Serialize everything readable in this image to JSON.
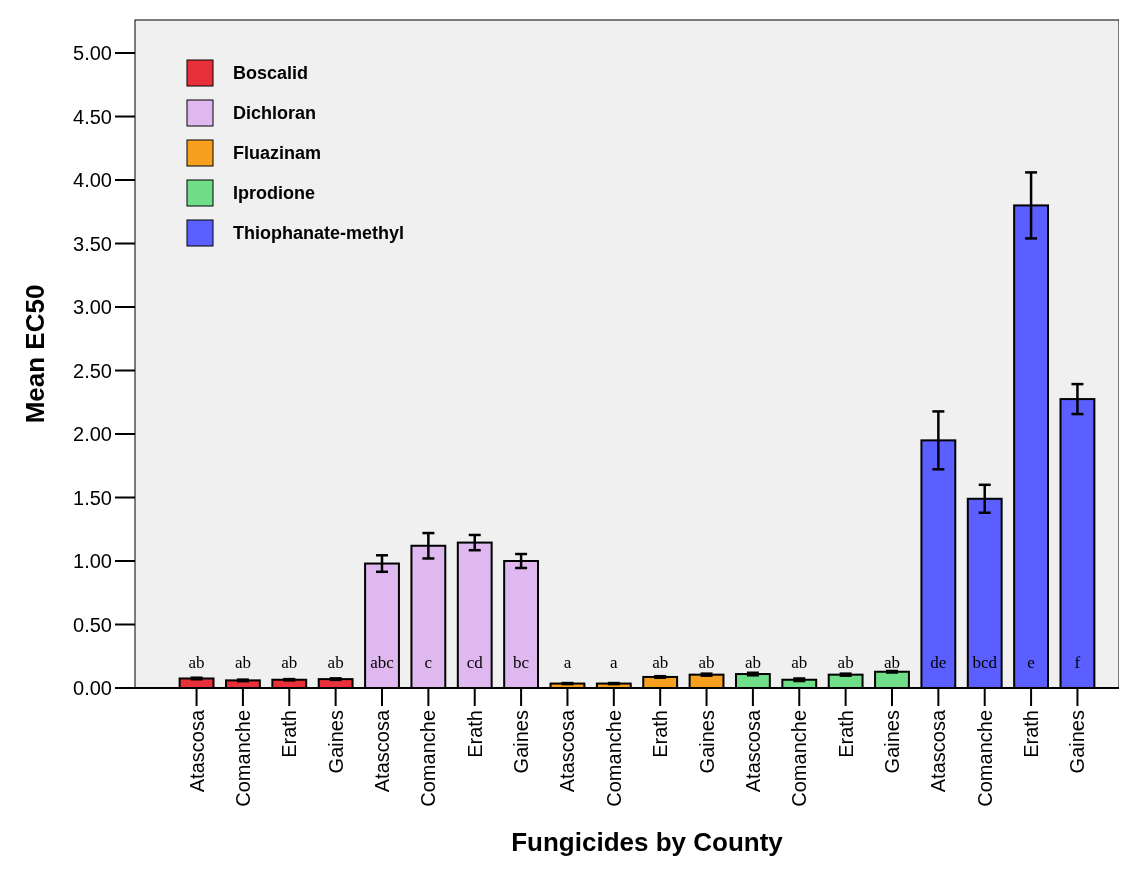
{
  "chart_data": {
    "type": "bar",
    "xlabel": "Fungicides by County",
    "ylabel": "Mean EC50",
    "categories": [
      "Atascosa",
      "Comanche",
      "Erath",
      "Gaines",
      "Atascosa",
      "Comanche",
      "Erath",
      "Gaines",
      "Atascosa",
      "Comanche",
      "Erath",
      "Gaines",
      "Atascosa",
      "Comanche",
      "Erath",
      "Gaines",
      "Atascosa",
      "Comanche",
      "Erath",
      "Gaines"
    ],
    "series": [
      {
        "name": "Boscalid",
        "color": "#e8303a",
        "values": [
          0.075,
          0.06,
          0.065,
          0.07,
          null,
          null,
          null,
          null,
          null,
          null,
          null,
          null,
          null,
          null,
          null,
          null,
          null,
          null,
          null,
          null
        ],
        "errors": [
          0.006,
          0.006,
          0.005,
          0.006,
          null,
          null,
          null,
          null,
          null,
          null,
          null,
          null,
          null,
          null,
          null,
          null,
          null,
          null,
          null,
          null
        ]
      },
      {
        "name": "Dichloran",
        "color": "#e0b8f0",
        "values": [
          null,
          null,
          null,
          null,
          0.98,
          1.12,
          1.145,
          1.0,
          null,
          null,
          null,
          null,
          null,
          null,
          null,
          null,
          null,
          null,
          null,
          null
        ],
        "errors": [
          null,
          null,
          null,
          null,
          0.065,
          0.1,
          0.06,
          0.055,
          null,
          null,
          null,
          null,
          null,
          null,
          null,
          null,
          null,
          null,
          null,
          null
        ]
      },
      {
        "name": "Fluazinam",
        "color": "#f7a020",
        "values": [
          null,
          null,
          null,
          null,
          null,
          null,
          null,
          null,
          0.035,
          0.035,
          0.087,
          0.105,
          null,
          null,
          null,
          null,
          null,
          null,
          null,
          null
        ],
        "errors": [
          null,
          null,
          null,
          null,
          null,
          null,
          null,
          null,
          0.004,
          0.004,
          0.006,
          0.008,
          null,
          null,
          null,
          null,
          null,
          null,
          null,
          null
        ]
      },
      {
        "name": "Iprodione",
        "color": "#70dd88",
        "values": [
          null,
          null,
          null,
          null,
          null,
          null,
          null,
          null,
          null,
          null,
          null,
          null,
          0.11,
          0.065,
          0.105,
          0.128,
          null,
          null,
          null,
          null
        ],
        "errors": [
          null,
          null,
          null,
          null,
          null,
          null,
          null,
          null,
          null,
          null,
          null,
          null,
          0.01,
          0.01,
          0.008,
          0.006,
          null,
          null,
          null,
          null
        ]
      },
      {
        "name": "Thiophanate-methyl",
        "color": "#5b5fff",
        "values": [
          null,
          null,
          null,
          null,
          null,
          null,
          null,
          null,
          null,
          null,
          null,
          null,
          null,
          null,
          null,
          null,
          1.95,
          1.49,
          3.8,
          2.275
        ],
        "errors": [
          null,
          null,
          null,
          null,
          null,
          null,
          null,
          null,
          null,
          null,
          null,
          null,
          null,
          null,
          null,
          null,
          0.228,
          0.11,
          0.26,
          0.118
        ]
      }
    ],
    "value_labels": [
      "ab",
      "ab",
      "ab",
      "ab",
      "abc",
      "c",
      "cd",
      "bc",
      "a",
      "a",
      "ab",
      "ab",
      "ab",
      "ab",
      "ab",
      "ab",
      "de",
      "bcd",
      "e",
      "f"
    ],
    "ylim": [
      0,
      5.26
    ],
    "yticks": [
      {
        "value": 0,
        "label": "0.00"
      },
      {
        "value": 0.5,
        "label": "0.50"
      },
      {
        "value": 1,
        "label": "1.00"
      },
      {
        "value": 1.5,
        "label": "1.50"
      },
      {
        "value": 2,
        "label": "2.00"
      },
      {
        "value": 2.5,
        "label": "2.50"
      },
      {
        "value": 3,
        "label": "3.00"
      },
      {
        "value": 3.5,
        "label": "3.50"
      },
      {
        "value": 4,
        "label": "4.00"
      },
      {
        "value": 4.5,
        "label": "4.50"
      },
      {
        "value": 5,
        "label": "5.00"
      }
    ],
    "legend": "top left",
    "grid": false
  }
}
